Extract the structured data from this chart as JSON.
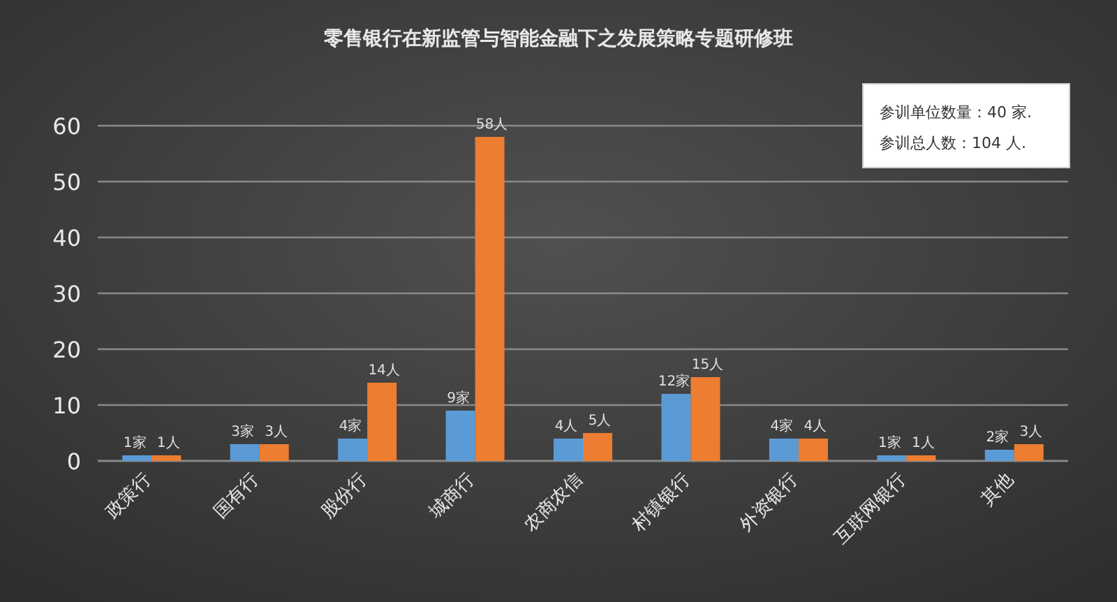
{
  "chart_data": {
    "type": "bar",
    "title": "零售银行在新监管与智能金融下之发展策略专题研修班",
    "categories": [
      "政策行",
      "国有行",
      "股份行",
      "城商行",
      "农商农信",
      "村镇银行",
      "外资银行",
      "互联网银行",
      "其他"
    ],
    "series": [
      {
        "color": "#5b9bd5",
        "values": [
          1,
          3,
          4,
          9,
          4,
          12,
          4,
          1,
          2
        ],
        "value_labels": [
          "1家",
          "3家",
          "4家",
          "9家",
          "4人",
          "12家",
          "4家",
          "1家",
          "2家"
        ]
      },
      {
        "color": "#ed7d31",
        "values": [
          1,
          3,
          14,
          58,
          5,
          15,
          4,
          1,
          3
        ],
        "value_labels": [
          "1人",
          "3人",
          "14人",
          "58人",
          "5人",
          "15人",
          "4人",
          "1人",
          "3人"
        ]
      }
    ],
    "ylim": [
      0,
      60
    ],
    "yticks": [
      0,
      10,
      20,
      30,
      40,
      50,
      60
    ],
    "grid": "y",
    "annotations": [
      "参训单位数量：40 家.",
      "参训总人数：104 人."
    ]
  }
}
